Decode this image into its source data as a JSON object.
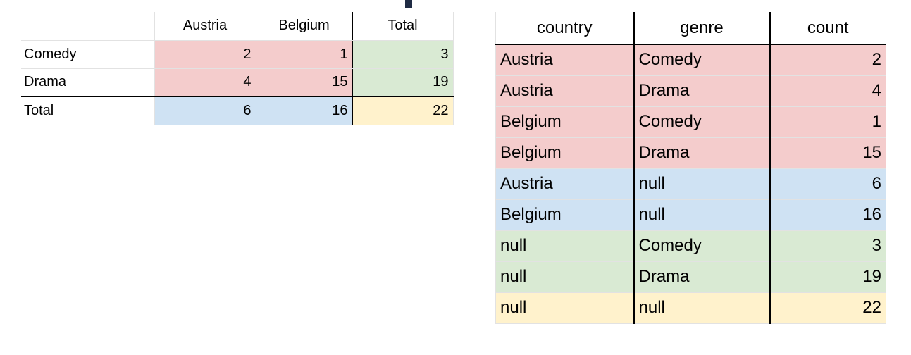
{
  "pivot": {
    "columns": [
      "",
      "Austria",
      "Belgium",
      "Total"
    ],
    "rows": [
      {
        "label": "Comedy",
        "austria": "2",
        "belgium": "1",
        "total": "3"
      },
      {
        "label": "Drama",
        "austria": "4",
        "belgium": "15",
        "total": "19"
      },
      {
        "label": "Total",
        "austria": "6",
        "belgium": "16",
        "total": "22"
      }
    ],
    "colors": {
      "detail": "#f4cccc",
      "row_total": "#d9ead3",
      "col_total": "#cfe2f3",
      "grand_total": "#fff2cc"
    }
  },
  "flat": {
    "columns": [
      "country",
      "genre",
      "count"
    ],
    "rows": [
      {
        "country": "Austria",
        "genre": "Comedy",
        "count": "2",
        "color": "red"
      },
      {
        "country": "Austria",
        "genre": "Drama",
        "count": "4",
        "color": "red"
      },
      {
        "country": "Belgium",
        "genre": "Comedy",
        "count": "1",
        "color": "red"
      },
      {
        "country": "Belgium",
        "genre": "Drama",
        "count": "15",
        "color": "red"
      },
      {
        "country": "Austria",
        "genre": "null",
        "count": "6",
        "color": "blue"
      },
      {
        "country": "Belgium",
        "genre": "null",
        "count": "16",
        "color": "blue"
      },
      {
        "country": "null",
        "genre": "Comedy",
        "count": "3",
        "color": "green"
      },
      {
        "country": "null",
        "genre": "Drama",
        "count": "19",
        "color": "green"
      },
      {
        "country": "null",
        "genre": "null",
        "count": "22",
        "color": "yellow"
      }
    ]
  }
}
